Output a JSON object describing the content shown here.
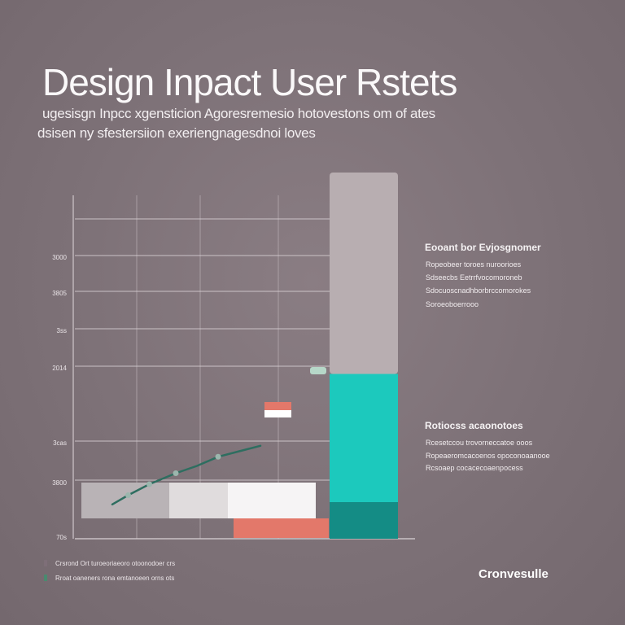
{
  "header": {
    "title": "Design Inpact User Rstets",
    "subtitle_lines": [
      "ugesisgn Inpcc xgensticion Agoresremesio hotovestons om of ates",
      "dsisen ny sfestersiion exeriengnagesdnoi loves"
    ]
  },
  "chart_data": {
    "type": "bar",
    "title": "Design Inpact User Rstets",
    "y_tick_labels": [
      "70s",
      "3800",
      "3cas",
      "2014",
      "3ss",
      "3805",
      "3000"
    ],
    "grid": true,
    "gridlines": "horizontal and vertical",
    "horizontal_bars": {
      "segments": [
        {
          "label": "",
          "value": 1.5,
          "color": "#b9b3b6"
        },
        {
          "label": "",
          "value": 1.0,
          "color": "#e0dcdd"
        },
        {
          "label": "",
          "value": 1.5,
          "color": "#f6f4f5"
        }
      ],
      "accent_segment": {
        "value": 1.5,
        "color": "#e3786a"
      }
    },
    "stacked_column": {
      "segments": [
        {
          "label": "",
          "value": 1.0,
          "color": "#148c85"
        },
        {
          "label": "",
          "value": 3.5,
          "color": "#1cc9bd"
        },
        {
          "label": "",
          "value": 5.5,
          "color": "#b8aeb1"
        }
      ]
    },
    "line_series": {
      "color": "#2e6e60",
      "x": [
        0.4,
        0.7,
        1.1,
        1.6,
        2.0,
        2.4,
        2.8,
        3.2
      ],
      "y": [
        2.05,
        2.3,
        2.6,
        2.9,
        3.1,
        3.35,
        3.5,
        3.65
      ],
      "markers": [
        1,
        2,
        3,
        5
      ],
      "marker_color": "#9bb6ad"
    },
    "small_marker": {
      "x": 4.55,
      "y": 3.4,
      "color": "#b6d7c8"
    },
    "floating_box": {
      "x": 3.4,
      "y": 3.3,
      "colors": [
        "#e3786a",
        "#ffffff"
      ]
    }
  },
  "panel": {
    "section1": {
      "heading": "Eooant bor Evjosgnomer",
      "lines": [
        "Ropeobeer toroes nuroorioes",
        "Sdseecbs Eetrrfvocomoroneb",
        "Sdocuoscnadhborbrccomorokes",
        "Soroeoboerrooo"
      ]
    },
    "section2": {
      "heading": "Rotiocss acaonotoes",
      "lines": [
        "Rcesetccou trovorneccatoe ooos",
        "Ropeaeromcacoenos opoconoaanooe",
        "Rcsoaep cocacecoaenpocess"
      ]
    }
  },
  "footer": {
    "notes": [
      "Crsrond Ort turoeoriaeoro otoonodoer crs",
      "Rroat oaneners rona emtanoeen orns ots"
    ],
    "note_marker_colors": [
      "#7e6f78",
      "#4a8a6f"
    ],
    "brand": "Cronvesulle"
  },
  "colors": {
    "background": "#7e7278",
    "teal": "#1cc9bd",
    "salmon": "#e3786a",
    "dark_teal": "#148c85",
    "grid": "#b3a8ad"
  }
}
